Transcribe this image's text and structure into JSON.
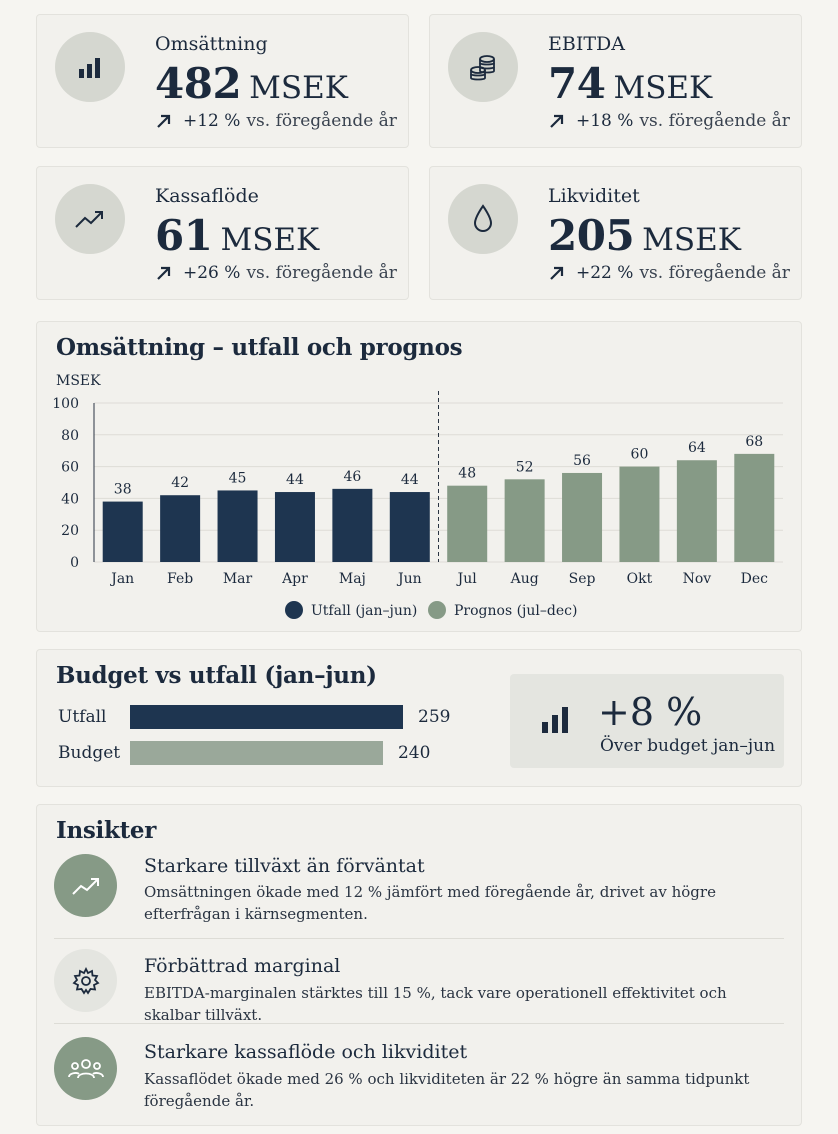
{
  "kpis": [
    {
      "label": "Omsättning",
      "value": "482",
      "unit": "MSEK",
      "delta": "+12 %",
      "delta_suffix": "vs. föregående år",
      "icon": "bar-chart-icon"
    },
    {
      "label": "EBITDA",
      "value": "74",
      "unit": "MSEK",
      "delta": "+18 %",
      "delta_suffix": "vs. föregående år",
      "icon": "coins-icon"
    },
    {
      "label": "Kassaflöde",
      "value": "61",
      "unit": "MSEK",
      "delta": "+26 %",
      "delta_suffix": "vs. föregående år",
      "icon": "trend-up-icon"
    },
    {
      "label": "Likviditet",
      "value": "205",
      "unit": "MSEK",
      "delta": "+22 %",
      "delta_suffix": "vs. föregående år",
      "icon": "droplet-icon"
    }
  ],
  "chart_data": [
    {
      "type": "bar",
      "title": "Omsättning – utfall och prognos",
      "ylabel": "MSEK",
      "xlabel": "",
      "ylim": [
        0,
        100
      ],
      "yticks": [
        0,
        20,
        40,
        60,
        80,
        100
      ],
      "grid": true,
      "legend_position": "bottom-center",
      "categories": [
        "Jan",
        "Feb",
        "Mar",
        "Apr",
        "Maj",
        "Jun",
        "Jul",
        "Aug",
        "Sep",
        "Okt",
        "Nov",
        "Dec"
      ],
      "series": [
        {
          "name": "Utfall (jan–jun)",
          "color": "#1e3550",
          "values": [
            38,
            42,
            45,
            44,
            46,
            44,
            null,
            null,
            null,
            null,
            null,
            null
          ]
        },
        {
          "name": "Prognos (jul–dec)",
          "color": "#869a86",
          "values": [
            null,
            null,
            null,
            null,
            null,
            null,
            48,
            52,
            56,
            60,
            64,
            68
          ]
        }
      ]
    },
    {
      "type": "bar",
      "title": "Budget vs utfall (jan–jun)",
      "orientation": "horizontal",
      "categories": [
        "Utfall",
        "Budget"
      ],
      "values": [
        259,
        240
      ],
      "colors": [
        "#1e3550",
        "#9aa89a"
      ]
    }
  ],
  "budget_callout": {
    "value": "+8 %",
    "text": "Över budget jan–jun",
    "icon": "bar-chart-icon"
  },
  "insights": {
    "title": "Insikter",
    "items": [
      {
        "title": "Starkare tillväxt än förväntat",
        "text": "Omsättningen ökade med 12 % jämfört med föregående år, drivet av högre efterfrågan i kärnsegmenten.",
        "icon": "trend-up-icon",
        "circle_color": "#869a86"
      },
      {
        "title": "Förbättrad marginal",
        "text": "EBITDA-marginalen stärktes till 15 %, tack vare operationell effektivitet och skalbar tillväxt.",
        "icon": "gear-icon",
        "circle_color": "#e4e5e0"
      },
      {
        "title": "Starkare kassaflöde och likviditet",
        "text": "Kassaflödet ökade med 26 % och likviditeten är 22 % högre än samma tidpunkt föregående år.",
        "icon": "users-icon",
        "circle_color": "#869a86"
      }
    ]
  }
}
